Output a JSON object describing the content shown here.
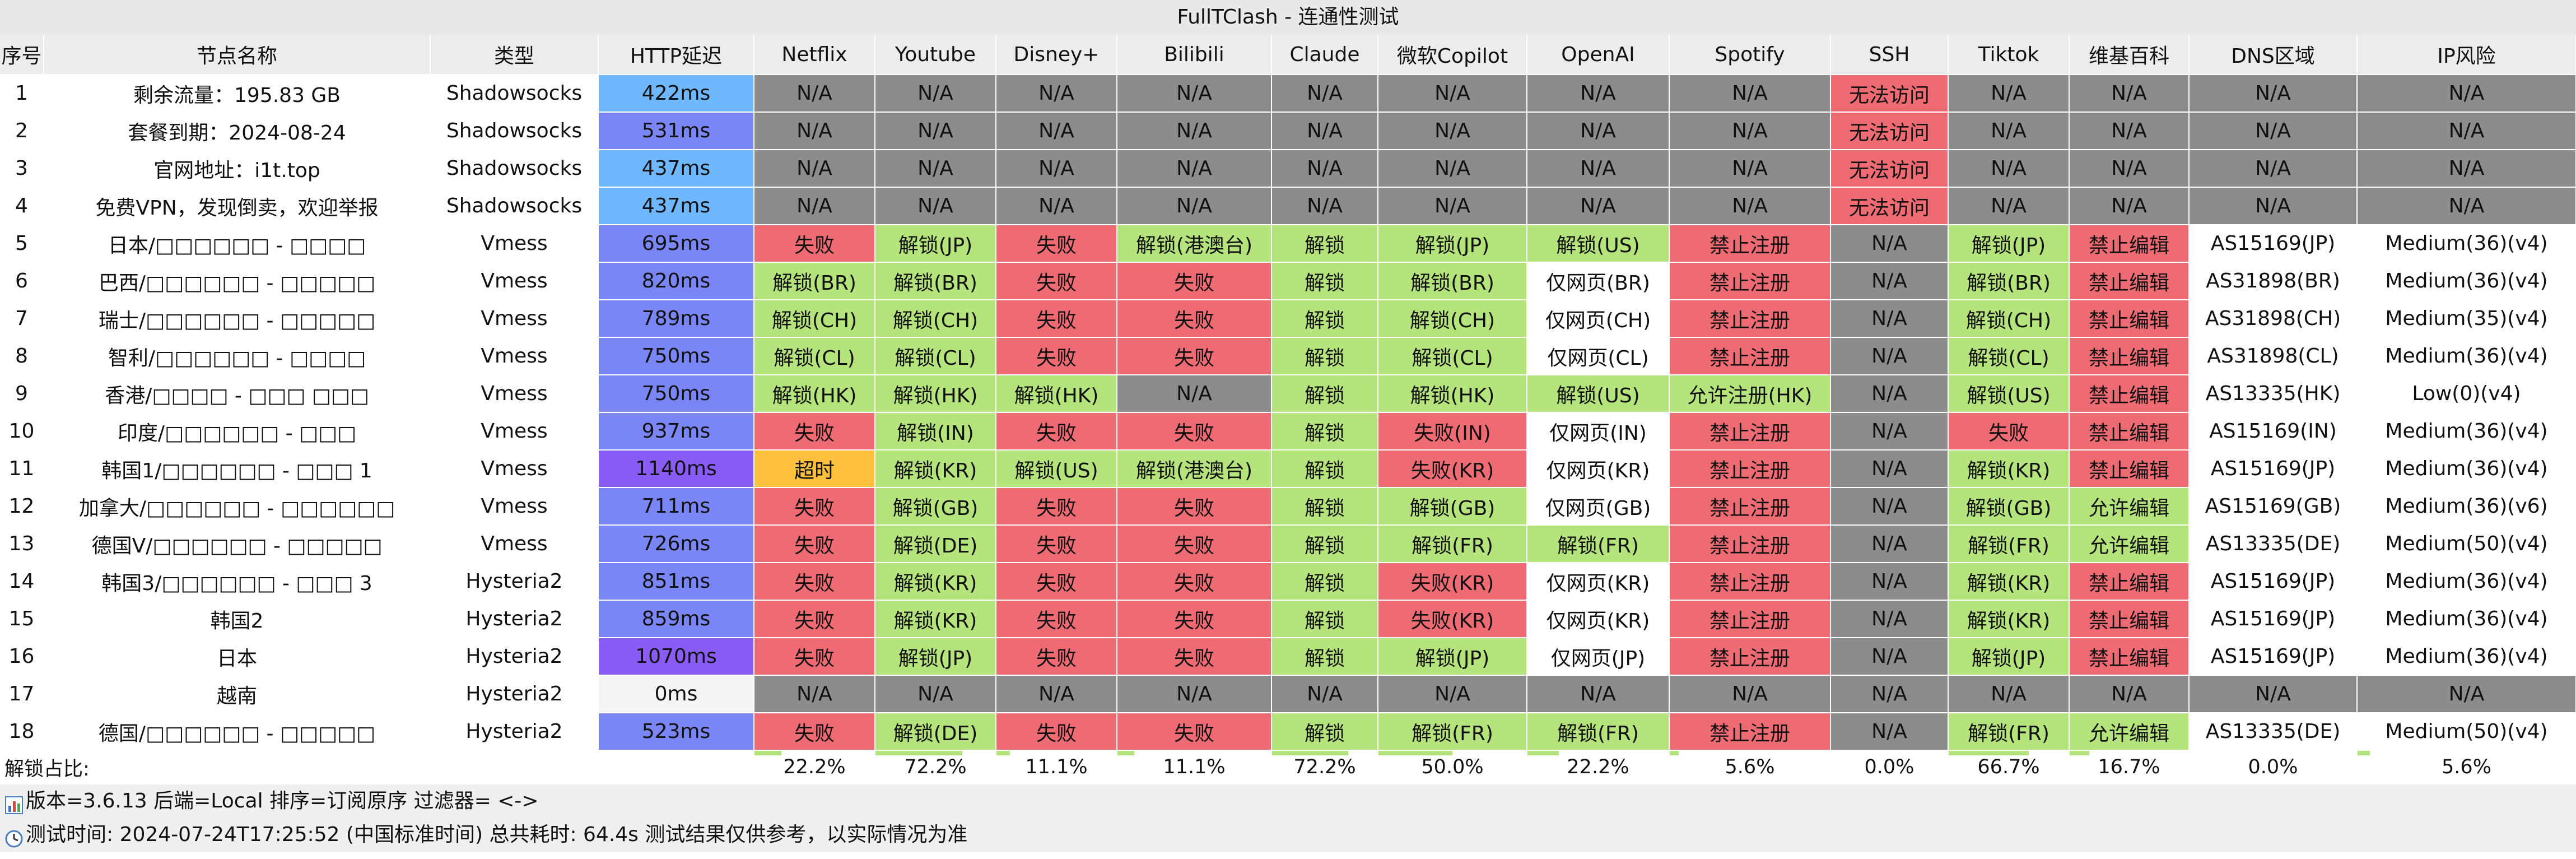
{
  "title": "FullTClash - 连通性测试",
  "columns": [
    "序号",
    "节点名称",
    "类型",
    "HTTP延迟",
    "Netflix",
    "Youtube",
    "Disney+",
    "Bilibili",
    "Claude",
    "微软Copilot",
    "OpenAI",
    "Spotify",
    "SSH",
    "Tiktok",
    "维基百科",
    "DNS区域",
    "IP风险"
  ],
  "colors": {
    "na": "#8c8c8c",
    "fail": "#ef6b73",
    "ok": "#b5e37c",
    "web_only": "#ffffff",
    "timeout": "#ffc13d",
    "latency_scale": [
      "#6fb8ff",
      "#7a86f5",
      "#8a5cf6"
    ]
  },
  "rows": [
    {
      "idx": "1",
      "name": "剩余流量：195.83 GB",
      "type": "Shadowsocks",
      "latency": "422ms",
      "latency_level": "low",
      "cells": [
        [
          "N/A",
          "na"
        ],
        [
          "N/A",
          "na"
        ],
        [
          "N/A",
          "na"
        ],
        [
          "N/A",
          "na"
        ],
        [
          "N/A",
          "na"
        ],
        [
          "N/A",
          "na"
        ],
        [
          "N/A",
          "na"
        ],
        [
          "N/A",
          "na"
        ],
        [
          "无法访问",
          "fail"
        ],
        [
          "N/A",
          "na"
        ],
        [
          "N/A",
          "na"
        ],
        [
          "N/A",
          "na"
        ],
        [
          "N/A",
          "na"
        ]
      ]
    },
    {
      "idx": "2",
      "name": "套餐到期：2024-08-24",
      "type": "Shadowsocks",
      "latency": "531ms",
      "latency_level": "mid",
      "cells": [
        [
          "N/A",
          "na"
        ],
        [
          "N/A",
          "na"
        ],
        [
          "N/A",
          "na"
        ],
        [
          "N/A",
          "na"
        ],
        [
          "N/A",
          "na"
        ],
        [
          "N/A",
          "na"
        ],
        [
          "N/A",
          "na"
        ],
        [
          "N/A",
          "na"
        ],
        [
          "无法访问",
          "fail"
        ],
        [
          "N/A",
          "na"
        ],
        [
          "N/A",
          "na"
        ],
        [
          "N/A",
          "na"
        ],
        [
          "N/A",
          "na"
        ]
      ]
    },
    {
      "idx": "3",
      "name": "官网地址：i1t.top",
      "type": "Shadowsocks",
      "latency": "437ms",
      "latency_level": "low",
      "cells": [
        [
          "N/A",
          "na"
        ],
        [
          "N/A",
          "na"
        ],
        [
          "N/A",
          "na"
        ],
        [
          "N/A",
          "na"
        ],
        [
          "N/A",
          "na"
        ],
        [
          "N/A",
          "na"
        ],
        [
          "N/A",
          "na"
        ],
        [
          "N/A",
          "na"
        ],
        [
          "无法访问",
          "fail"
        ],
        [
          "N/A",
          "na"
        ],
        [
          "N/A",
          "na"
        ],
        [
          "N/A",
          "na"
        ],
        [
          "N/A",
          "na"
        ]
      ]
    },
    {
      "idx": "4",
      "name": "免费VPN，发现倒卖，欢迎举报",
      "type": "Shadowsocks",
      "latency": "437ms",
      "latency_level": "low",
      "cells": [
        [
          "N/A",
          "na"
        ],
        [
          "N/A",
          "na"
        ],
        [
          "N/A",
          "na"
        ],
        [
          "N/A",
          "na"
        ],
        [
          "N/A",
          "na"
        ],
        [
          "N/A",
          "na"
        ],
        [
          "N/A",
          "na"
        ],
        [
          "N/A",
          "na"
        ],
        [
          "无法访问",
          "fail"
        ],
        [
          "N/A",
          "na"
        ],
        [
          "N/A",
          "na"
        ],
        [
          "N/A",
          "na"
        ],
        [
          "N/A",
          "na"
        ]
      ]
    },
    {
      "idx": "5",
      "name": "日本/□□□□□□ - □□□□",
      "type": "Vmess",
      "latency": "695ms",
      "latency_level": "mid",
      "cells": [
        [
          "失败",
          "fail"
        ],
        [
          "解锁(JP)",
          "ok"
        ],
        [
          "失败",
          "fail"
        ],
        [
          "解锁(港澳台)",
          "ok"
        ],
        [
          "解锁",
          "ok"
        ],
        [
          "解锁(JP)",
          "ok"
        ],
        [
          "解锁(US)",
          "ok"
        ],
        [
          "禁止注册",
          "fail"
        ],
        [
          "N/A",
          "na"
        ],
        [
          "解锁(JP)",
          "ok"
        ],
        [
          "禁止编辑",
          "fail"
        ],
        [
          "AS15169(JP)",
          "plain"
        ],
        [
          "Medium(36)(v4)",
          "plain"
        ]
      ]
    },
    {
      "idx": "6",
      "name": "巴西/□□□□□□ - □□□□□",
      "type": "Vmess",
      "latency": "820ms",
      "latency_level": "mid",
      "cells": [
        [
          "解锁(BR)",
          "ok"
        ],
        [
          "解锁(BR)",
          "ok"
        ],
        [
          "失败",
          "fail"
        ],
        [
          "失败",
          "fail"
        ],
        [
          "解锁",
          "ok"
        ],
        [
          "解锁(BR)",
          "ok"
        ],
        [
          "仅网页(BR)",
          "web_only"
        ],
        [
          "禁止注册",
          "fail"
        ],
        [
          "N/A",
          "na"
        ],
        [
          "解锁(BR)",
          "ok"
        ],
        [
          "禁止编辑",
          "fail"
        ],
        [
          "AS31898(BR)",
          "plain"
        ],
        [
          "Medium(36)(v4)",
          "plain"
        ]
      ]
    },
    {
      "idx": "7",
      "name": "瑞士/□□□□□□ - □□□□□",
      "type": "Vmess",
      "latency": "789ms",
      "latency_level": "mid",
      "cells": [
        [
          "解锁(CH)",
          "ok"
        ],
        [
          "解锁(CH)",
          "ok"
        ],
        [
          "失败",
          "fail"
        ],
        [
          "失败",
          "fail"
        ],
        [
          "解锁",
          "ok"
        ],
        [
          "解锁(CH)",
          "ok"
        ],
        [
          "仅网页(CH)",
          "web_only"
        ],
        [
          "禁止注册",
          "fail"
        ],
        [
          "N/A",
          "na"
        ],
        [
          "解锁(CH)",
          "ok"
        ],
        [
          "禁止编辑",
          "fail"
        ],
        [
          "AS31898(CH)",
          "plain"
        ],
        [
          "Medium(35)(v4)",
          "plain"
        ]
      ]
    },
    {
      "idx": "8",
      "name": "智利/□□□□□□ - □□□□",
      "type": "Vmess",
      "latency": "750ms",
      "latency_level": "mid",
      "cells": [
        [
          "解锁(CL)",
          "ok"
        ],
        [
          "解锁(CL)",
          "ok"
        ],
        [
          "失败",
          "fail"
        ],
        [
          "失败",
          "fail"
        ],
        [
          "解锁",
          "ok"
        ],
        [
          "解锁(CL)",
          "ok"
        ],
        [
          "仅网页(CL)",
          "web_only"
        ],
        [
          "禁止注册",
          "fail"
        ],
        [
          "N/A",
          "na"
        ],
        [
          "解锁(CL)",
          "ok"
        ],
        [
          "禁止编辑",
          "fail"
        ],
        [
          "AS31898(CL)",
          "plain"
        ],
        [
          "Medium(36)(v4)",
          "plain"
        ]
      ]
    },
    {
      "idx": "9",
      "name": "香港/□□□□ - □□□ □□□",
      "type": "Vmess",
      "latency": "750ms",
      "latency_level": "mid",
      "cells": [
        [
          "解锁(HK)",
          "ok"
        ],
        [
          "解锁(HK)",
          "ok"
        ],
        [
          "解锁(HK)",
          "ok"
        ],
        [
          "N/A",
          "na"
        ],
        [
          "解锁",
          "ok"
        ],
        [
          "解锁(HK)",
          "ok"
        ],
        [
          "解锁(US)",
          "ok"
        ],
        [
          "允许注册(HK)",
          "ok"
        ],
        [
          "N/A",
          "na"
        ],
        [
          "解锁(US)",
          "ok"
        ],
        [
          "禁止编辑",
          "fail"
        ],
        [
          "AS13335(HK)",
          "plain"
        ],
        [
          "Low(0)(v4)",
          "plain"
        ]
      ]
    },
    {
      "idx": "10",
      "name": "印度/□□□□□□ - □□□",
      "type": "Vmess",
      "latency": "937ms",
      "latency_level": "mid",
      "cells": [
        [
          "失败",
          "fail"
        ],
        [
          "解锁(IN)",
          "ok"
        ],
        [
          "失败",
          "fail"
        ],
        [
          "失败",
          "fail"
        ],
        [
          "解锁",
          "ok"
        ],
        [
          "失败(IN)",
          "fail"
        ],
        [
          "仅网页(IN)",
          "web_only"
        ],
        [
          "禁止注册",
          "fail"
        ],
        [
          "N/A",
          "na"
        ],
        [
          "失败",
          "fail"
        ],
        [
          "禁止编辑",
          "fail"
        ],
        [
          "AS15169(IN)",
          "plain"
        ],
        [
          "Medium(36)(v4)",
          "plain"
        ]
      ]
    },
    {
      "idx": "11",
      "name": "韩国1/□□□□□□ - □□□ 1",
      "type": "Vmess",
      "latency": "1140ms",
      "latency_level": "high",
      "cells": [
        [
          "超时",
          "timeout"
        ],
        [
          "解锁(KR)",
          "ok"
        ],
        [
          "解锁(US)",
          "ok"
        ],
        [
          "解锁(港澳台)",
          "ok"
        ],
        [
          "解锁",
          "ok"
        ],
        [
          "失败(KR)",
          "fail"
        ],
        [
          "仅网页(KR)",
          "web_only"
        ],
        [
          "禁止注册",
          "fail"
        ],
        [
          "N/A",
          "na"
        ],
        [
          "解锁(KR)",
          "ok"
        ],
        [
          "禁止编辑",
          "fail"
        ],
        [
          "AS15169(JP)",
          "plain"
        ],
        [
          "Medium(36)(v4)",
          "plain"
        ]
      ]
    },
    {
      "idx": "12",
      "name": "加拿大/□□□□□□ - □□□□□□",
      "type": "Vmess",
      "latency": "711ms",
      "latency_level": "mid",
      "cells": [
        [
          "失败",
          "fail"
        ],
        [
          "解锁(GB)",
          "ok"
        ],
        [
          "失败",
          "fail"
        ],
        [
          "失败",
          "fail"
        ],
        [
          "解锁",
          "ok"
        ],
        [
          "解锁(GB)",
          "ok"
        ],
        [
          "仅网页(GB)",
          "web_only"
        ],
        [
          "禁止注册",
          "fail"
        ],
        [
          "N/A",
          "na"
        ],
        [
          "解锁(GB)",
          "ok"
        ],
        [
          "允许编辑",
          "ok"
        ],
        [
          "AS15169(GB)",
          "plain"
        ],
        [
          "Medium(36)(v6)",
          "plain"
        ]
      ]
    },
    {
      "idx": "13",
      "name": "德国V/□□□□□□ - □□□□□",
      "type": "Vmess",
      "latency": "726ms",
      "latency_level": "mid",
      "cells": [
        [
          "失败",
          "fail"
        ],
        [
          "解锁(DE)",
          "ok"
        ],
        [
          "失败",
          "fail"
        ],
        [
          "失败",
          "fail"
        ],
        [
          "解锁",
          "ok"
        ],
        [
          "解锁(FR)",
          "ok"
        ],
        [
          "解锁(FR)",
          "ok"
        ],
        [
          "禁止注册",
          "fail"
        ],
        [
          "N/A",
          "na"
        ],
        [
          "解锁(FR)",
          "ok"
        ],
        [
          "允许编辑",
          "ok"
        ],
        [
          "AS13335(DE)",
          "plain"
        ],
        [
          "Medium(50)(v4)",
          "plain"
        ]
      ]
    },
    {
      "idx": "14",
      "name": "韩国3/□□□□□□ - □□□ 3",
      "type": "Hysteria2",
      "latency": "851ms",
      "latency_level": "mid",
      "cells": [
        [
          "失败",
          "fail"
        ],
        [
          "解锁(KR)",
          "ok"
        ],
        [
          "失败",
          "fail"
        ],
        [
          "失败",
          "fail"
        ],
        [
          "解锁",
          "ok"
        ],
        [
          "失败(KR)",
          "fail"
        ],
        [
          "仅网页(KR)",
          "web_only"
        ],
        [
          "禁止注册",
          "fail"
        ],
        [
          "N/A",
          "na"
        ],
        [
          "解锁(KR)",
          "ok"
        ],
        [
          "禁止编辑",
          "fail"
        ],
        [
          "AS15169(JP)",
          "plain"
        ],
        [
          "Medium(36)(v4)",
          "plain"
        ]
      ]
    },
    {
      "idx": "15",
      "name": "韩国2",
      "type": "Hysteria2",
      "latency": "859ms",
      "latency_level": "mid",
      "cells": [
        [
          "失败",
          "fail"
        ],
        [
          "解锁(KR)",
          "ok"
        ],
        [
          "失败",
          "fail"
        ],
        [
          "失败",
          "fail"
        ],
        [
          "解锁",
          "ok"
        ],
        [
          "失败(KR)",
          "fail"
        ],
        [
          "仅网页(KR)",
          "web_only"
        ],
        [
          "禁止注册",
          "fail"
        ],
        [
          "N/A",
          "na"
        ],
        [
          "解锁(KR)",
          "ok"
        ],
        [
          "禁止编辑",
          "fail"
        ],
        [
          "AS15169(JP)",
          "plain"
        ],
        [
          "Medium(36)(v4)",
          "plain"
        ]
      ]
    },
    {
      "idx": "16",
      "name": "日本",
      "type": "Hysteria2",
      "latency": "1070ms",
      "latency_level": "high",
      "cells": [
        [
          "失败",
          "fail"
        ],
        [
          "解锁(JP)",
          "ok"
        ],
        [
          "失败",
          "fail"
        ],
        [
          "失败",
          "fail"
        ],
        [
          "解锁",
          "ok"
        ],
        [
          "解锁(JP)",
          "ok"
        ],
        [
          "仅网页(JP)",
          "web_only"
        ],
        [
          "禁止注册",
          "fail"
        ],
        [
          "N/A",
          "na"
        ],
        [
          "解锁(JP)",
          "ok"
        ],
        [
          "禁止编辑",
          "fail"
        ],
        [
          "AS15169(JP)",
          "plain"
        ],
        [
          "Medium(36)(v4)",
          "plain"
        ]
      ]
    },
    {
      "idx": "17",
      "name": "越南",
      "type": "Hysteria2",
      "latency": "0ms",
      "latency_level": "none",
      "cells": [
        [
          "N/A",
          "na"
        ],
        [
          "N/A",
          "na"
        ],
        [
          "N/A",
          "na"
        ],
        [
          "N/A",
          "na"
        ],
        [
          "N/A",
          "na"
        ],
        [
          "N/A",
          "na"
        ],
        [
          "N/A",
          "na"
        ],
        [
          "N/A",
          "na"
        ],
        [
          "N/A",
          "na"
        ],
        [
          "N/A",
          "na"
        ],
        [
          "N/A",
          "na"
        ],
        [
          "N/A",
          "na"
        ],
        [
          "N/A",
          "na"
        ]
      ]
    },
    {
      "idx": "18",
      "name": "德国/□□□□□□ - □□□□□",
      "type": "Hysteria2",
      "latency": "523ms",
      "latency_level": "mid",
      "cells": [
        [
          "失败",
          "fail"
        ],
        [
          "解锁(DE)",
          "ok"
        ],
        [
          "失败",
          "fail"
        ],
        [
          "失败",
          "fail"
        ],
        [
          "解锁",
          "ok"
        ],
        [
          "解锁(FR)",
          "ok"
        ],
        [
          "解锁(FR)",
          "ok"
        ],
        [
          "禁止注册",
          "fail"
        ],
        [
          "N/A",
          "na"
        ],
        [
          "解锁(FR)",
          "ok"
        ],
        [
          "允许编辑",
          "ok"
        ],
        [
          "AS13335(DE)",
          "plain"
        ],
        [
          "Medium(50)(v4)",
          "plain"
        ]
      ]
    }
  ],
  "summary": {
    "label": "解锁占比:",
    "values": [
      "22.2%",
      "72.2%",
      "11.1%",
      "11.1%",
      "72.2%",
      "50.0%",
      "22.2%",
      "5.6%",
      "0.0%",
      "66.7%",
      "16.7%",
      "0.0%",
      "5.6%"
    ],
    "fractions": [
      0.222,
      0.722,
      0.111,
      0.111,
      0.722,
      0.5,
      0.222,
      0.056,
      0.0,
      0.667,
      0.167,
      0.0,
      0.056
    ]
  },
  "footer": {
    "line1": "版本=3.6.13  后端=Local  排序=订阅原序  过滤器= <->",
    "line2": "测试时间: 2024-07-24T17:25:52 (中国标准时间) 总共耗时: 64.4s 测试结果仅供参考，以实际情况为准",
    "icon1": "bar-chart-icon",
    "icon2": "clock-icon"
  }
}
